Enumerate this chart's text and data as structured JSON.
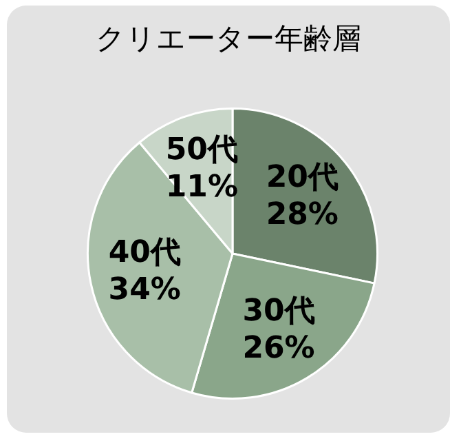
{
  "chart_data": {
    "type": "pie",
    "title": "クリエーター年齢層",
    "categories": [
      "20代",
      "30代",
      "40代",
      "50代"
    ],
    "values": [
      28,
      26,
      34,
      11
    ],
    "value_labels": [
      "28%",
      "26%",
      "34%",
      "11%"
    ],
    "colors": [
      "#6b836b",
      "#8aa68a",
      "#a8bfa8",
      "#c8d6c8"
    ],
    "legend": false
  }
}
